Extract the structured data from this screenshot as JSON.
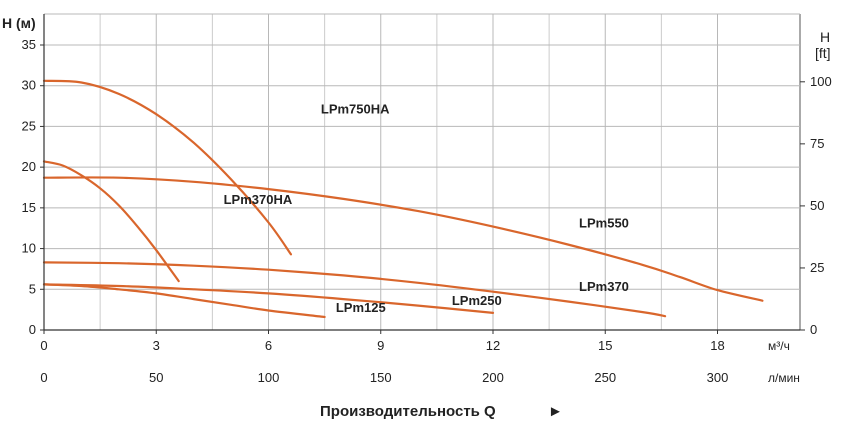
{
  "chart_data": {
    "type": "line",
    "title": "",
    "ylabel_left": "H (м)",
    "ylabel_right_line1": "H",
    "ylabel_right_line2": "[ft]",
    "xlabel": "Производительность Q",
    "xlabel_arrow": "►",
    "x_unit_m3h": "м³/ч",
    "x_unit_lmin": "л/мин",
    "xlim_m3h": [
      0,
      18.3
    ],
    "ylim_m": [
      0,
      37
    ],
    "yticks_m": [
      0,
      5,
      10,
      15,
      20,
      25,
      30,
      35
    ],
    "yticks_ft": [
      0,
      25,
      50,
      75,
      100
    ],
    "xticks_m3h": [
      0,
      3,
      6,
      9,
      12,
      15,
      18
    ],
    "xticks_lmin": [
      0,
      50,
      100,
      150,
      200,
      250,
      300
    ],
    "grid": true,
    "series": [
      {
        "name": "LPm750HA",
        "x": [
          0,
          1,
          2,
          3,
          4,
          5,
          6,
          6.6
        ],
        "y": [
          30.6,
          30.4,
          29.0,
          26.5,
          23.0,
          18.5,
          13.2,
          9.3
        ]
      },
      {
        "name": "LPm370HA",
        "x": [
          0,
          0.5,
          1,
          1.5,
          2,
          2.5,
          3,
          3.6
        ],
        "y": [
          20.7,
          20.2,
          19.0,
          17.4,
          15.3,
          12.7,
          9.8,
          6.0
        ]
      },
      {
        "name": "LPm550",
        "x": [
          0,
          2,
          4,
          6,
          8,
          10,
          12,
          14,
          16,
          17,
          18,
          19.2
        ],
        "y": [
          18.7,
          18.7,
          18.2,
          17.3,
          16.1,
          14.6,
          12.7,
          10.5,
          8.0,
          6.5,
          4.9,
          3.6
        ]
      },
      {
        "name": "LPm370",
        "x": [
          0,
          2,
          4,
          6,
          8,
          10,
          12,
          14,
          16,
          16.6
        ],
        "y": [
          8.3,
          8.2,
          7.9,
          7.4,
          6.7,
          5.8,
          4.7,
          3.5,
          2.2,
          1.7
        ]
      },
      {
        "name": "LPm250",
        "x": [
          0,
          2,
          4,
          6,
          8,
          10,
          12
        ],
        "y": [
          5.6,
          5.4,
          5.0,
          4.5,
          3.8,
          3.0,
          2.1
        ]
      },
      {
        "name": "LPm125",
        "x": [
          0,
          1,
          2,
          3,
          4,
          5,
          6,
          7.5
        ],
        "y": [
          5.6,
          5.4,
          5.0,
          4.5,
          3.8,
          3.1,
          2.4,
          1.6
        ]
      }
    ],
    "line_color": "#d9662c"
  }
}
